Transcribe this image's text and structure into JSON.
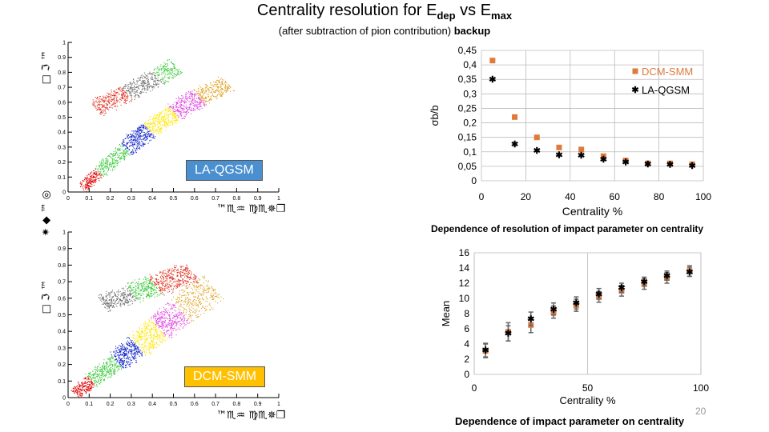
{
  "slide": {
    "title_main": "Centrality resolution for E",
    "title_sub1": "dep",
    "title_vs": " vs E",
    "title_sub2": "max",
    "subtitle_pre": "(after subtraction of pion contribution)",
    "subtitle_bold": "backup",
    "page_number": "20"
  },
  "left_plots": {
    "top_label": "LA-QGSM",
    "bottom_label": "DCM-SMM",
    "top_label_bg": "#4a8fd0",
    "bottom_label_bg": "#ffc000",
    "ylabel_glyphs": "□ ℑ ™",
    "ylabel_glyphs_b": "✷ ◆ ™ ◎",
    "xlabel_glyphs": "™♏♒ ♍♏✵❐",
    "tick_labels": [
      "0",
      "0.1",
      "0.2",
      "0.3",
      "0.4",
      "0.5",
      "0.6",
      "0.7",
      "0.8",
      "0.9",
      "1"
    ],
    "band_colors": [
      "#e00000",
      "#39c939",
      "#0a1ec8",
      "#ffe600",
      "#e040e0",
      "#e03020",
      "#707070",
      "#e0a020"
    ]
  },
  "chart_data": [
    {
      "type": "scatter",
      "title": "",
      "xlabel": "Centrality %",
      "ylabel": "σb/b",
      "caption": "Dependence of resolution of impact parameter on centrality",
      "xlim": [
        0,
        100
      ],
      "ylim": [
        0,
        0.45
      ],
      "x_ticks": [
        "0",
        "20",
        "40",
        "60",
        "80",
        "100"
      ],
      "y_ticks": [
        "0",
        "0,05",
        "0,1",
        "0,15",
        "0,2",
        "0,25",
        "0,3",
        "0,35",
        "0,4",
        "0,45"
      ],
      "legend_position": "top-right",
      "series": [
        {
          "name": "DCM-SMM",
          "color": "#e07a3c",
          "marker": "square",
          "x": [
            5,
            15,
            25,
            35,
            45,
            55,
            65,
            75,
            85,
            95
          ],
          "y": [
            0.415,
            0.22,
            0.15,
            0.115,
            0.108,
            0.085,
            0.07,
            0.06,
            0.06,
            0.057
          ]
        },
        {
          "name": "LA-QGSM",
          "color": "#000000",
          "marker": "star",
          "x": [
            5,
            15,
            25,
            35,
            45,
            55,
            65,
            75,
            85,
            95
          ],
          "y": [
            0.35,
            0.127,
            0.105,
            0.09,
            0.088,
            0.075,
            0.065,
            0.058,
            0.057,
            0.053
          ]
        }
      ]
    },
    {
      "type": "scatter",
      "title": "",
      "xlabel": "Centrality %",
      "ylabel": "Mean",
      "caption": "Dependence of impact parameter on centrality",
      "xlim": [
        0,
        100
      ],
      "ylim": [
        0,
        16
      ],
      "x_ticks": [
        "0",
        "50",
        "100"
      ],
      "y_ticks": [
        "0",
        "2",
        "4",
        "6",
        "8",
        "10",
        "12",
        "14",
        "16"
      ],
      "series": [
        {
          "name": "DCM-SMM",
          "color": "#e07a3c",
          "marker": "square",
          "x": [
            5,
            15,
            25,
            35,
            45,
            55,
            65,
            75,
            85,
            95
          ],
          "y": [
            3.1,
            5.6,
            6.5,
            8.2,
            9.1,
            10.2,
            11.0,
            11.9,
            12.7,
            13.6
          ],
          "err": [
            0.9,
            1.2,
            1.0,
            0.8,
            0.8,
            0.7,
            0.7,
            0.7,
            0.7,
            0.7
          ]
        },
        {
          "name": "LA-QGSM",
          "color": "#000000",
          "marker": "star",
          "x": [
            5,
            15,
            25,
            35,
            45,
            55,
            65,
            75,
            85,
            95
          ],
          "y": [
            3.2,
            5.4,
            7.3,
            8.6,
            9.4,
            10.6,
            11.4,
            12.2,
            13.0,
            13.5
          ],
          "err": [
            0.9,
            1.0,
            0.9,
            0.8,
            0.8,
            0.7,
            0.6,
            0.6,
            0.6,
            0.6
          ]
        }
      ]
    }
  ]
}
